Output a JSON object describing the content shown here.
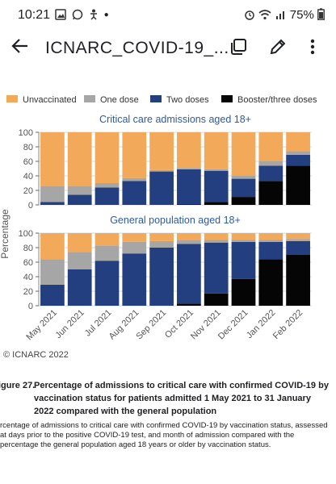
{
  "status_bar": {
    "time": "10:21",
    "left_icons": [
      "image-icon",
      "whatsapp-icon",
      "accessibility-icon",
      "dot-icon"
    ],
    "battery": "75%"
  },
  "app_bar": {
    "title": "ICNARC_COVID-19_...",
    "icons": [
      "back-arrow-icon",
      "copy-icon",
      "edit-icon",
      "more-vert-icon"
    ]
  },
  "figure": {
    "copyright": "© ICNARC 2022",
    "caption_label": "igure 27.",
    "caption_text": "Percentage of admissions to critical care with confirmed COVID-19 by vaccination status for patients admitted 1 May 2021 to 31 January 2022 compared with the general population",
    "description": "rcentage of admissions to critical care with confirmed COVID-19 by vaccination status, assessed at days prior to the positive COVID-19 test, and month of admission compared with the percentage the general population aged 18 years or older by vaccination status."
  },
  "chart_data": {
    "type": "bar",
    "stacked": true,
    "ylabel": "Percentage",
    "ylim": [
      0,
      100
    ],
    "yticks": [
      0,
      20,
      40,
      60,
      80,
      100
    ],
    "categories": [
      "May 2021",
      "Jun 2021",
      "Jul 2021",
      "Aug 2021",
      "Sep 2021",
      "Oct 2021",
      "Nov 2021",
      "Dec 2021",
      "Jan 2022",
      "Feb 2022"
    ],
    "legend": [
      {
        "name": "Unvaccinated",
        "color": "#F3A95A"
      },
      {
        "name": "One dose",
        "color": "#A6A6A6"
      },
      {
        "name": "Two doses",
        "color": "#243F7F"
      },
      {
        "name": "Booster/three doses",
        "color": "#050505"
      }
    ],
    "panels": [
      {
        "title": "Critical care admissions aged 18+",
        "series": [
          {
            "name": "Booster/three doses",
            "values": [
              0,
              0,
              0,
              0,
              0,
              1,
              4,
              11,
              33,
              54
            ]
          },
          {
            "name": "Two doses",
            "values": [
              4,
              14,
              24,
              33,
              46,
              48,
              43,
              25,
              21,
              15
            ]
          },
          {
            "name": "One dose",
            "values": [
              22,
              12,
              6,
              4,
              2,
              2,
              2,
              4,
              6,
              5
            ]
          },
          {
            "name": "Unvaccinated",
            "values": [
              74,
              74,
              70,
              63,
              52,
              49,
              51,
              60,
              40,
              26
            ]
          }
        ]
      },
      {
        "title": "General population aged 18+",
        "series": [
          {
            "name": "Booster/three doses",
            "values": [
              0,
              0,
              0,
              0,
              0,
              3,
              17,
              37,
              64,
              70
            ]
          },
          {
            "name": "Two doses",
            "values": [
              29,
              50,
              62,
              72,
              80,
              82,
              70,
              51,
              24,
              19
            ]
          },
          {
            "name": "One dose",
            "values": [
              35,
              24,
              21,
              16,
              9,
              5,
              4,
              3,
              3,
              3
            ]
          },
          {
            "name": "Unvaccinated",
            "values": [
              36,
              26,
              17,
              12,
              11,
              10,
              9,
              9,
              9,
              8
            ]
          }
        ]
      }
    ]
  }
}
